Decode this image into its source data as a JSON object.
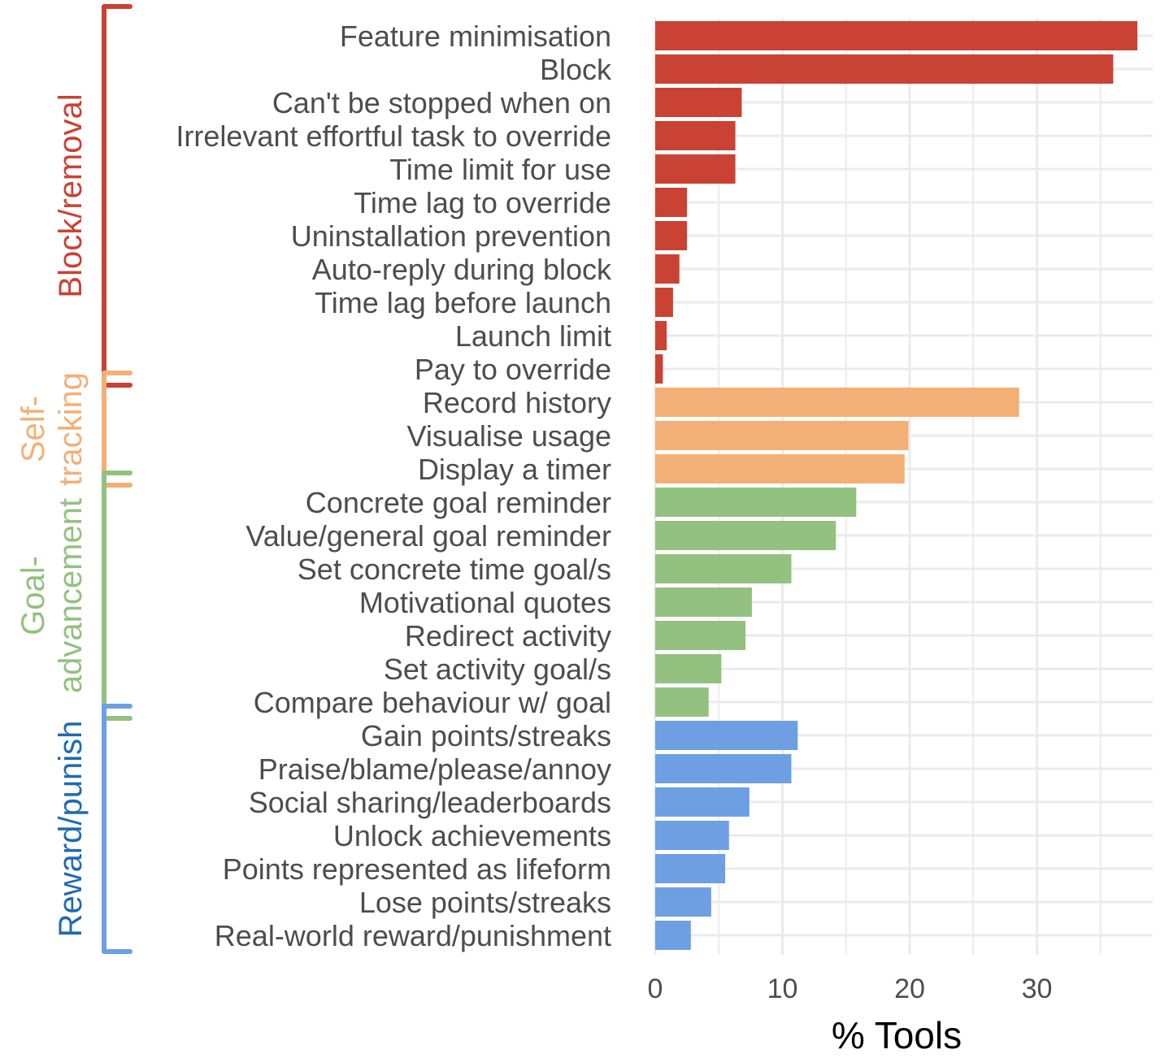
{
  "chart_data": {
    "type": "bar",
    "orientation": "horizontal",
    "title": "",
    "xlabel": "% Tools",
    "ylabel": "",
    "xlim": [
      0,
      39
    ],
    "xticks": [
      0,
      10,
      20,
      30
    ],
    "tick_labels": [
      "0",
      "10",
      "20",
      "30"
    ],
    "grid": true,
    "legend": "none",
    "groups": [
      {
        "name": "Block/removal",
        "label_lines": [
          "Block/removal"
        ],
        "color": "#c94233",
        "label_color": "#c94233",
        "bracket_color": "#c94233",
        "categories": [
          "Feature minimisation",
          "Block",
          "Can't be stopped when on",
          "Irrelevant effortful task to override",
          "Time limit for use",
          "Time lag to override",
          "Uninstallation prevention",
          "Auto-reply during block",
          "Time lag before launch",
          "Launch limit",
          "Pay to override"
        ],
        "values": [
          37.9,
          36.0,
          6.8,
          6.3,
          6.3,
          2.5,
          2.5,
          1.9,
          1.4,
          0.9,
          0.6
        ]
      },
      {
        "name": "Self-tracking",
        "label_lines": [
          "Self-",
          "tracking"
        ],
        "color": "#f2b077",
        "label_color": "#f2b077",
        "bracket_color": "#f2b077",
        "categories": [
          "Record history",
          "Visualise usage",
          "Display a timer"
        ],
        "values": [
          28.6,
          19.9,
          19.6
        ]
      },
      {
        "name": "Goal-advancement",
        "label_lines": [
          "Goal-",
          "advancement"
        ],
        "color": "#93c180",
        "label_color": "#93c180",
        "bracket_color": "#93c180",
        "categories": [
          "Concrete goal reminder",
          "Value/general goal reminder",
          "Set concrete time goal/s",
          "Motivational quotes",
          "Redirect activity",
          "Set activity goal/s",
          "Compare behaviour w/ goal"
        ],
        "values": [
          15.8,
          14.2,
          10.7,
          7.6,
          7.1,
          5.2,
          4.2
        ]
      },
      {
        "name": "Reward/punish",
        "label_lines": [
          "Reward/punish"
        ],
        "color": "#6e9fe3",
        "label_color": "#1f6ab3",
        "bracket_color": "#6e9fe3",
        "categories": [
          "Gain points/streaks",
          "Praise/blame/please/annoy",
          "Social sharing/leaderboards",
          "Unlock achievements",
          "Points represented as lifeform",
          "Lose points/streaks",
          "Real-world reward/punishment"
        ],
        "values": [
          11.2,
          10.7,
          7.4,
          5.8,
          5.5,
          4.4,
          2.8
        ]
      }
    ]
  }
}
